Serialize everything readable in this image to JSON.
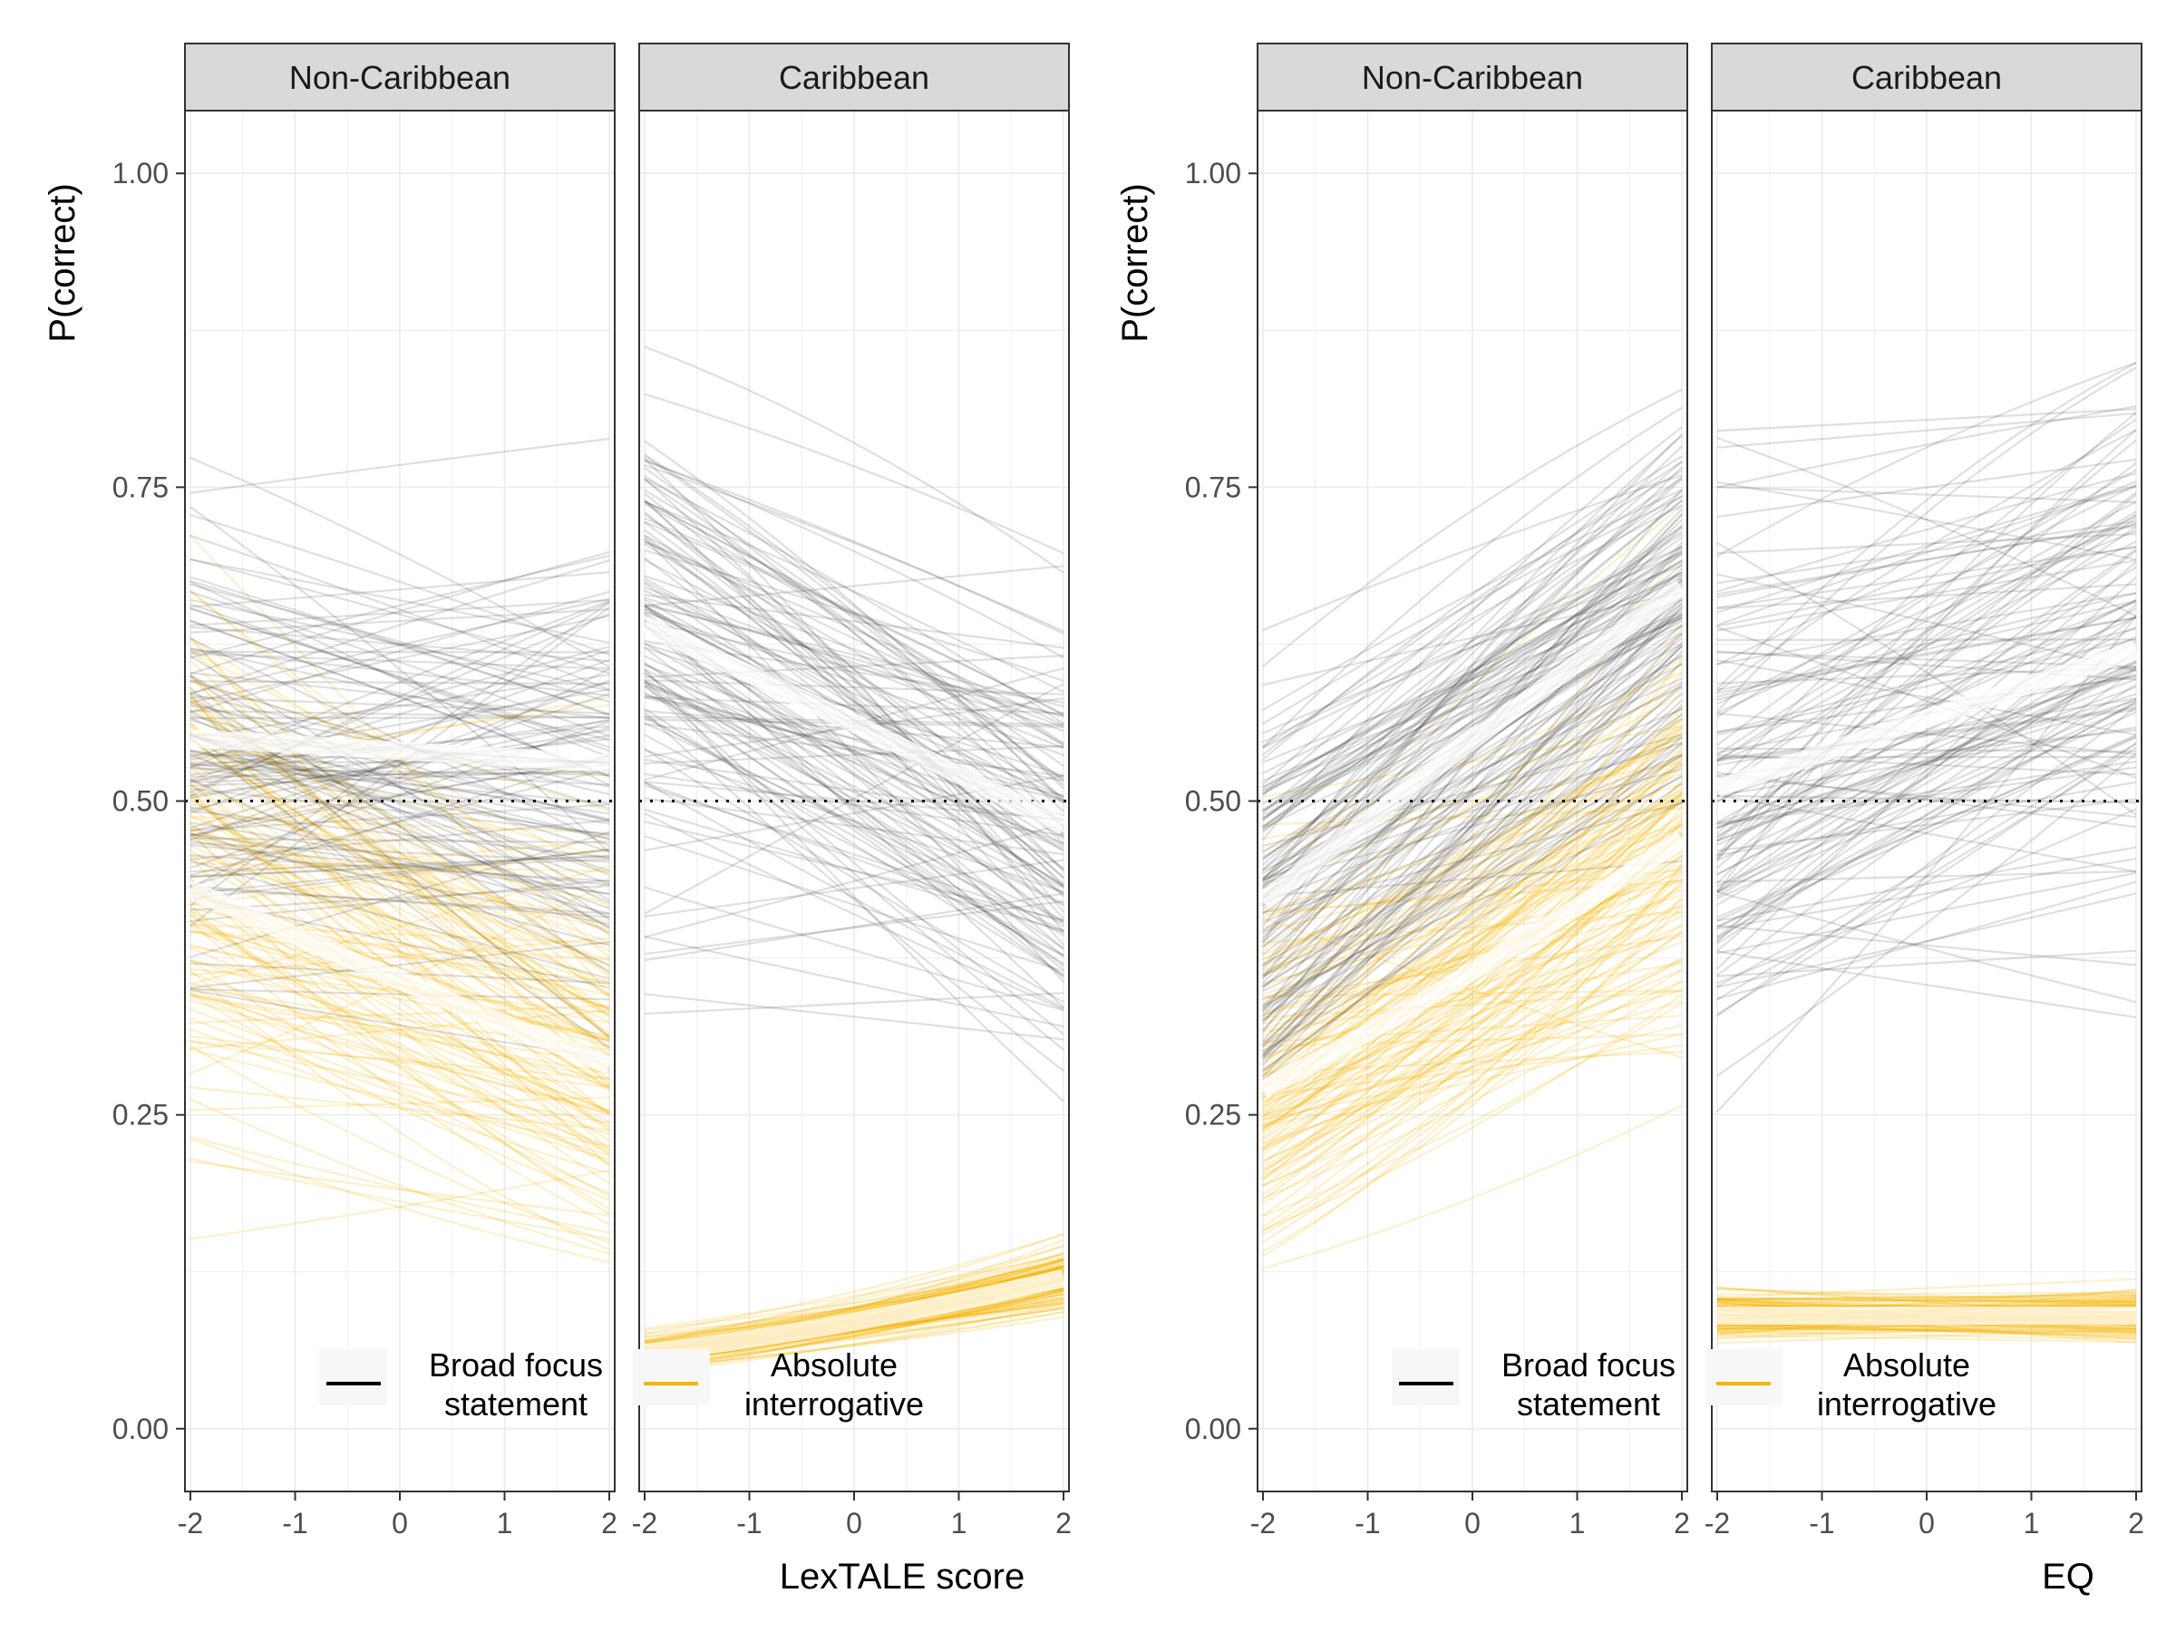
{
  "colors": {
    "broad_focus_statement": "#3a3a3a",
    "absolute_interrogative": "#f4b400",
    "mean_line": "#ffffff",
    "strip_fill": "#d9d9d9",
    "grid": "#ebebeb",
    "chance_line": "#000000"
  },
  "chart_data": [
    {
      "type": "line",
      "facets": [
        "Non-Caribbean",
        "Caribbean"
      ],
      "xlabel": "LexTALE score",
      "ylabel": "P(correct)",
      "xlim": [
        -2,
        2
      ],
      "ylim": [
        -0.05,
        1.05
      ],
      "x_ticks": [
        "-2",
        "-1",
        "0",
        "1",
        "2"
      ],
      "y_ticks": [
        "0.00",
        "0.25",
        "0.50",
        "0.75",
        "1.00"
      ],
      "reference_line": 0.5,
      "legend": [
        {
          "lines": [
            "Broad focus",
            "statement"
          ],
          "color_key": "broad_focus_statement"
        },
        {
          "lines": [
            "Absolute",
            "interrogative"
          ],
          "color_key": "absolute_interrogative"
        }
      ],
      "legend_position": "bottom-inside",
      "series": [
        {
          "facet": "Non-Caribbean",
          "name": "Broad focus statement",
          "x": [
            -2,
            2
          ],
          "mean": [
            0.55,
            0.53
          ],
          "spread": 0.09
        },
        {
          "facet": "Non-Caribbean",
          "name": "Absolute interrogative",
          "x": [
            -2,
            2
          ],
          "mean": [
            0.43,
            0.29
          ],
          "spread": 0.11
        },
        {
          "facet": "Caribbean",
          "name": "Broad focus statement",
          "x": [
            -2,
            2
          ],
          "mean": [
            0.64,
            0.48
          ],
          "spread": 0.1
        },
        {
          "facet": "Caribbean",
          "name": "Absolute interrogative",
          "x": [
            -2,
            2
          ],
          "mean": [
            0.06,
            0.12
          ],
          "spread": 0.03
        }
      ]
    },
    {
      "type": "line",
      "facets": [
        "Non-Caribbean",
        "Caribbean"
      ],
      "xlabel": "EQ",
      "ylabel": "P(correct)",
      "xlim": [
        -2,
        2
      ],
      "ylim": [
        -0.05,
        1.05
      ],
      "x_ticks": [
        "-2",
        "-1",
        "0",
        "1",
        "2"
      ],
      "y_ticks": [
        "0.00",
        "0.25",
        "0.50",
        "0.75",
        "1.00"
      ],
      "reference_line": 0.5,
      "legend": [
        {
          "lines": [
            "Broad focus",
            "statement"
          ],
          "color_key": "broad_focus_statement"
        },
        {
          "lines": [
            "Absolute",
            "interrogative"
          ],
          "color_key": "absolute_interrogative"
        }
      ],
      "legend_position": "bottom-inside",
      "series": [
        {
          "facet": "Non-Caribbean",
          "name": "Broad focus statement",
          "x": [
            -2,
            2
          ],
          "mean": [
            0.42,
            0.67
          ],
          "spread": 0.08
        },
        {
          "facet": "Non-Caribbean",
          "name": "Absolute interrogative",
          "x": [
            -2,
            2
          ],
          "mean": [
            0.27,
            0.47
          ],
          "spread": 0.09
        },
        {
          "facet": "Caribbean",
          "name": "Broad focus statement",
          "x": [
            -2,
            2
          ],
          "mean": [
            0.51,
            0.62
          ],
          "spread": 0.11
        },
        {
          "facet": "Caribbean",
          "name": "Absolute interrogative",
          "x": [
            -2,
            2
          ],
          "mean": [
            0.09,
            0.09
          ],
          "spread": 0.03
        }
      ]
    }
  ]
}
